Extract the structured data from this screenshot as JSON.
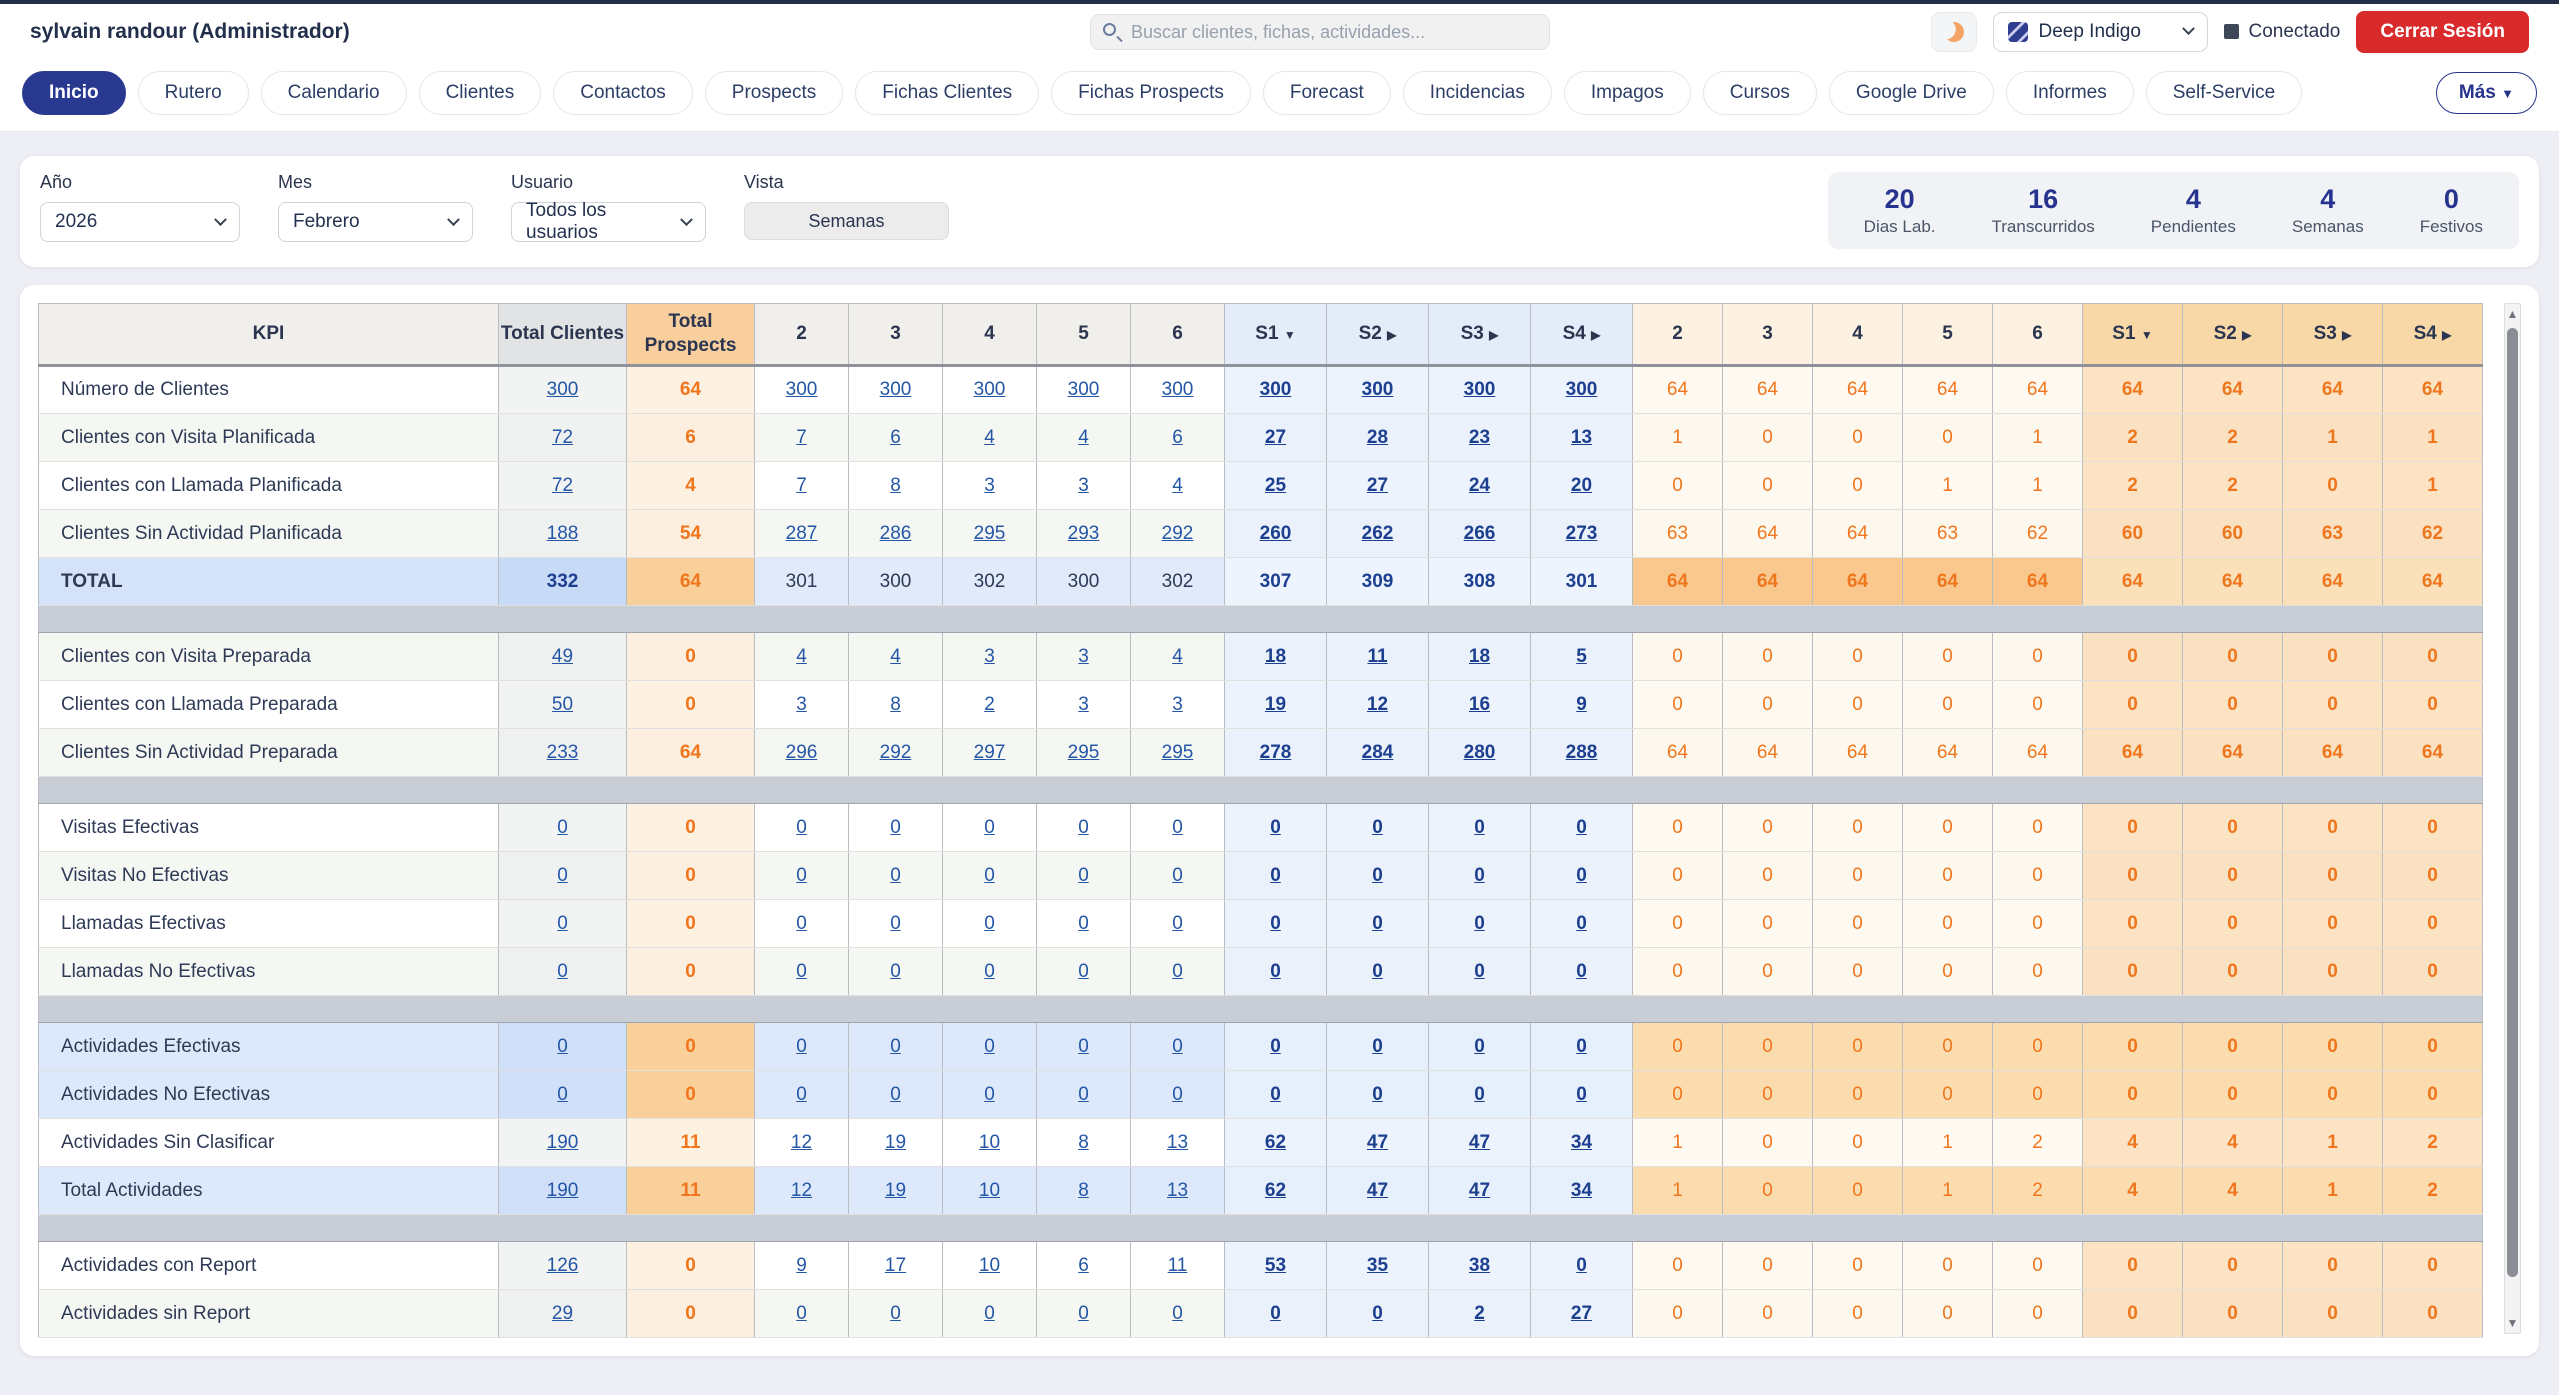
{
  "colors": {
    "accent": "#2a3990",
    "orange": "#f0761d",
    "link_blue": "#2456a6",
    "danger_red": "#d92b2b",
    "separator_gray": "#c9cdd6",
    "total_row_blue": "#d5e3f8"
  },
  "icons": {
    "search": "magnifier-icon",
    "dark_mode": "moon-icon",
    "status": "square-icon",
    "select_chevron": "chevron-down",
    "sorted_col": "▼",
    "expandable_col": "▶",
    "scroll_up": "▲",
    "scroll_down": "▼"
  },
  "topbar": {
    "user": "sylvain randour (Administrador)",
    "search_placeholder": "Buscar clientes, fichas, actividades...",
    "theme": "Deep Indigo",
    "status": "Conectado",
    "logout": "Cerrar Sesión"
  },
  "nav": {
    "tabs": [
      {
        "label": "Inicio",
        "active": true
      },
      {
        "label": "Rutero",
        "active": false
      },
      {
        "label": "Calendario",
        "active": false
      },
      {
        "label": "Clientes",
        "active": false
      },
      {
        "label": "Contactos",
        "active": false
      },
      {
        "label": "Prospects",
        "active": false
      },
      {
        "label": "Fichas Clientes",
        "active": false
      },
      {
        "label": "Fichas Prospects",
        "active": false
      },
      {
        "label": "Forecast",
        "active": false
      },
      {
        "label": "Incidencias",
        "active": false
      },
      {
        "label": "Impagos",
        "active": false
      },
      {
        "label": "Cursos",
        "active": false
      },
      {
        "label": "Google Drive",
        "active": false
      },
      {
        "label": "Informes",
        "active": false
      },
      {
        "label": "Self-Service",
        "active": false
      }
    ],
    "more_label": "Más",
    "more_arrow": "▼"
  },
  "filters": {
    "year_label": "Año",
    "year_value": "2026",
    "month_label": "Mes",
    "month_value": "Febrero",
    "user_label": "Usuario",
    "user_value": "Todos los usuarios",
    "view_label": "Vista",
    "view_value": "Semanas"
  },
  "stats": [
    {
      "value": "20",
      "label": "Dias Lab."
    },
    {
      "value": "16",
      "label": "Transcurridos"
    },
    {
      "value": "4",
      "label": "Pendientes"
    },
    {
      "value": "4",
      "label": "Semanas"
    },
    {
      "value": "0",
      "label": "Festivos"
    }
  ],
  "table": {
    "kpi_header": "KPI",
    "headers": [
      {
        "label": "Total Clientes",
        "type": "tc"
      },
      {
        "label": "Total Prospects",
        "type": "tp"
      },
      {
        "label": "2",
        "type": "cday"
      },
      {
        "label": "3",
        "type": "cday"
      },
      {
        "label": "4",
        "type": "cday"
      },
      {
        "label": "5",
        "type": "cday"
      },
      {
        "label": "6",
        "type": "cday"
      },
      {
        "label": "S1",
        "arrow": "▼",
        "type": "cweek"
      },
      {
        "label": "S2",
        "arrow": "▶",
        "type": "cweek"
      },
      {
        "label": "S3",
        "arrow": "▶",
        "type": "cweek"
      },
      {
        "label": "S4",
        "arrow": "▶",
        "type": "cweek"
      },
      {
        "label": "2",
        "type": "pday"
      },
      {
        "label": "3",
        "type": "pday"
      },
      {
        "label": "4",
        "type": "pday"
      },
      {
        "label": "5",
        "type": "pday"
      },
      {
        "label": "6",
        "type": "pday"
      },
      {
        "label": "S1",
        "arrow": "▼",
        "type": "pweek"
      },
      {
        "label": "S2",
        "arrow": "▶",
        "type": "pweek"
      },
      {
        "label": "S3",
        "arrow": "▶",
        "type": "pweek"
      },
      {
        "label": "S4",
        "arrow": "▶",
        "type": "pweek"
      }
    ],
    "rows": [
      {
        "kpi": "Número de Clientes",
        "variant": "plain",
        "tc": "300",
        "tp": "64",
        "cdays": [
          "300",
          "300",
          "300",
          "300",
          "300"
        ],
        "cweeks": [
          "300",
          "300",
          "300",
          "300"
        ],
        "pdays": [
          "64",
          "64",
          "64",
          "64",
          "64"
        ],
        "pweeks": [
          "64",
          "64",
          "64",
          "64"
        ]
      },
      {
        "kpi": "Clientes con Visita Planificada",
        "variant": "alt",
        "tc": "72",
        "tp": "6",
        "cdays": [
          "7",
          "6",
          "4",
          "4",
          "6"
        ],
        "cweeks": [
          "27",
          "28",
          "23",
          "13"
        ],
        "pdays": [
          "1",
          "0",
          "0",
          "0",
          "1"
        ],
        "pweeks": [
          "2",
          "2",
          "1",
          "1"
        ]
      },
      {
        "kpi": "Clientes con Llamada Planificada",
        "variant": "plain",
        "tc": "72",
        "tp": "4",
        "cdays": [
          "7",
          "8",
          "3",
          "3",
          "4"
        ],
        "cweeks": [
          "25",
          "27",
          "24",
          "20"
        ],
        "pdays": [
          "0",
          "0",
          "0",
          "1",
          "1"
        ],
        "pweeks": [
          "2",
          "2",
          "0",
          "1"
        ]
      },
      {
        "kpi": "Clientes Sin Actividad Planificada",
        "variant": "alt",
        "tc": "188",
        "tp": "54",
        "cdays": [
          "287",
          "286",
          "295",
          "293",
          "292"
        ],
        "cweeks": [
          "260",
          "262",
          "266",
          "273"
        ],
        "pdays": [
          "63",
          "64",
          "64",
          "63",
          "62"
        ],
        "pweeks": [
          "60",
          "60",
          "63",
          "62"
        ]
      },
      {
        "kpi": "TOTAL",
        "variant": "total",
        "tc": "332",
        "tp": "64",
        "cdays": [
          "301",
          "300",
          "302",
          "300",
          "302"
        ],
        "cweeks": [
          "307",
          "309",
          "308",
          "301"
        ],
        "pdays": [
          "64",
          "64",
          "64",
          "64",
          "64"
        ],
        "pweeks": [
          "64",
          "64",
          "64",
          "64"
        ]
      },
      {
        "separator": true
      },
      {
        "kpi": "Clientes con Visita Preparada",
        "variant": "alt",
        "tc": "49",
        "tp": "0",
        "cdays": [
          "4",
          "4",
          "3",
          "3",
          "4"
        ],
        "cweeks": [
          "18",
          "11",
          "18",
          "5"
        ],
        "pdays": [
          "0",
          "0",
          "0",
          "0",
          "0"
        ],
        "pweeks": [
          "0",
          "0",
          "0",
          "0"
        ]
      },
      {
        "kpi": "Clientes con Llamada Preparada",
        "variant": "plain",
        "tc": "50",
        "tp": "0",
        "cdays": [
          "3",
          "8",
          "2",
          "3",
          "3"
        ],
        "cweeks": [
          "19",
          "12",
          "16",
          "9"
        ],
        "pdays": [
          "0",
          "0",
          "0",
          "0",
          "0"
        ],
        "pweeks": [
          "0",
          "0",
          "0",
          "0"
        ]
      },
      {
        "kpi": "Clientes Sin Actividad Preparada",
        "variant": "alt",
        "tc": "233",
        "tp": "64",
        "cdays": [
          "296",
          "292",
          "297",
          "295",
          "295"
        ],
        "cweeks": [
          "278",
          "284",
          "280",
          "288"
        ],
        "pdays": [
          "64",
          "64",
          "64",
          "64",
          "64"
        ],
        "pweeks": [
          "64",
          "64",
          "64",
          "64"
        ]
      },
      {
        "separator": true
      },
      {
        "kpi": "Visitas Efectivas",
        "variant": "plain",
        "tc": "0",
        "tp": "0",
        "cdays": [
          "0",
          "0",
          "0",
          "0",
          "0"
        ],
        "cweeks": [
          "0",
          "0",
          "0",
          "0"
        ],
        "pdays": [
          "0",
          "0",
          "0",
          "0",
          "0"
        ],
        "pweeks": [
          "0",
          "0",
          "0",
          "0"
        ]
      },
      {
        "kpi": "Visitas No Efectivas",
        "variant": "alt",
        "tc": "0",
        "tp": "0",
        "cdays": [
          "0",
          "0",
          "0",
          "0",
          "0"
        ],
        "cweeks": [
          "0",
          "0",
          "0",
          "0"
        ],
        "pdays": [
          "0",
          "0",
          "0",
          "0",
          "0"
        ],
        "pweeks": [
          "0",
          "0",
          "0",
          "0"
        ]
      },
      {
        "kpi": "Llamadas Efectivas",
        "variant": "plain",
        "tc": "0",
        "tp": "0",
        "cdays": [
          "0",
          "0",
          "0",
          "0",
          "0"
        ],
        "cweeks": [
          "0",
          "0",
          "0",
          "0"
        ],
        "pdays": [
          "0",
          "0",
          "0",
          "0",
          "0"
        ],
        "pweeks": [
          "0",
          "0",
          "0",
          "0"
        ]
      },
      {
        "kpi": "Llamadas No Efectivas",
        "variant": "alt",
        "tc": "0",
        "tp": "0",
        "cdays": [
          "0",
          "0",
          "0",
          "0",
          "0"
        ],
        "cweeks": [
          "0",
          "0",
          "0",
          "0"
        ],
        "pdays": [
          "0",
          "0",
          "0",
          "0",
          "0"
        ],
        "pweeks": [
          "0",
          "0",
          "0",
          "0"
        ]
      },
      {
        "separator": true
      },
      {
        "kpi": "Actividades Efectivas",
        "variant": "hl",
        "tc": "0",
        "tp": "0",
        "cdays": [
          "0",
          "0",
          "0",
          "0",
          "0"
        ],
        "cweeks": [
          "0",
          "0",
          "0",
          "0"
        ],
        "pdays": [
          "0",
          "0",
          "0",
          "0",
          "0"
        ],
        "pweeks": [
          "0",
          "0",
          "0",
          "0"
        ]
      },
      {
        "kpi": "Actividades No Efectivas",
        "variant": "hl",
        "tc": "0",
        "tp": "0",
        "cdays": [
          "0",
          "0",
          "0",
          "0",
          "0"
        ],
        "cweeks": [
          "0",
          "0",
          "0",
          "0"
        ],
        "pdays": [
          "0",
          "0",
          "0",
          "0",
          "0"
        ],
        "pweeks": [
          "0",
          "0",
          "0",
          "0"
        ]
      },
      {
        "kpi": "Actividades Sin Clasificar",
        "variant": "plain",
        "tc": "190",
        "tp": "11",
        "cdays": [
          "12",
          "19",
          "10",
          "8",
          "13"
        ],
        "cweeks": [
          "62",
          "47",
          "47",
          "34"
        ],
        "pdays": [
          "1",
          "0",
          "0",
          "1",
          "2"
        ],
        "pweeks": [
          "4",
          "4",
          "1",
          "2"
        ]
      },
      {
        "kpi": "Total Actividades",
        "variant": "hl",
        "tc": "190",
        "tp": "11",
        "cdays": [
          "12",
          "19",
          "10",
          "8",
          "13"
        ],
        "cweeks": [
          "62",
          "47",
          "47",
          "34"
        ],
        "pdays": [
          "1",
          "0",
          "0",
          "1",
          "2"
        ],
        "pweeks": [
          "4",
          "4",
          "1",
          "2"
        ]
      },
      {
        "separator": true
      },
      {
        "kpi": "Actividades con Report",
        "variant": "plain",
        "tc": "126",
        "tp": "0",
        "cdays": [
          "9",
          "17",
          "10",
          "6",
          "11"
        ],
        "cweeks": [
          "53",
          "35",
          "38",
          "0"
        ],
        "pdays": [
          "0",
          "0",
          "0",
          "0",
          "0"
        ],
        "pweeks": [
          "0",
          "0",
          "0",
          "0"
        ]
      },
      {
        "kpi": "Actividades sin Report",
        "variant": "alt",
        "tc": "29",
        "tp": "0",
        "cdays": [
          "0",
          "0",
          "0",
          "0",
          "0"
        ],
        "cweeks": [
          "0",
          "0",
          "2",
          "27"
        ],
        "pdays": [
          "0",
          "0",
          "0",
          "0",
          "0"
        ],
        "pweeks": [
          "0",
          "0",
          "0",
          "0"
        ]
      }
    ]
  }
}
